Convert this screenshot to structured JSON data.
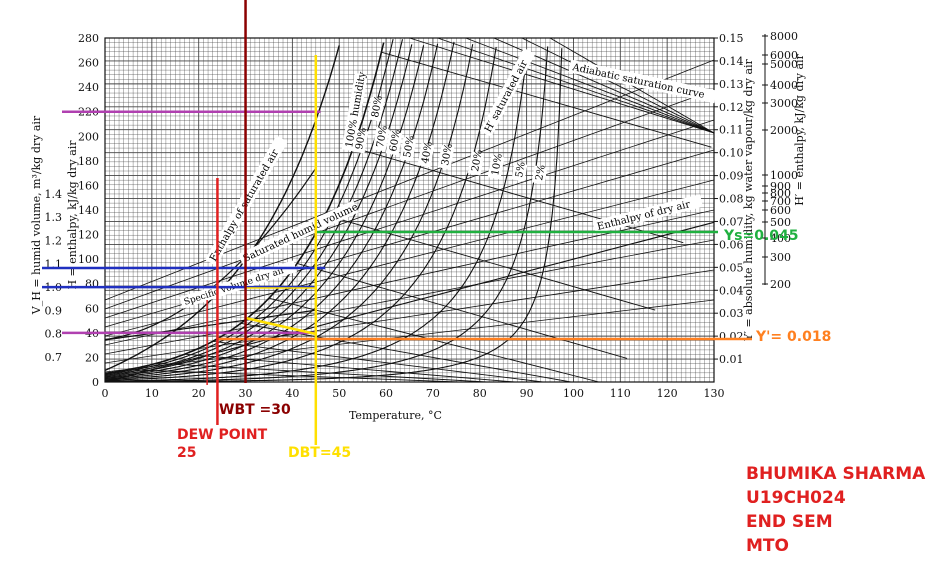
{
  "chart_data": {
    "type": "line",
    "title": "",
    "xlabel": "Temperature, °C",
    "x_range": [
      0,
      130
    ],
    "x_ticks": [
      0,
      10,
      20,
      30,
      40,
      50,
      60,
      70,
      80,
      90,
      100,
      110,
      120,
      130
    ],
    "axes": {
      "humid_volume": {
        "label": "V_H = humid volume, m³/kg dry air",
        "range": [
          0.7,
          1.4
        ],
        "ticks": [
          "0.7",
          "0.8",
          "0.9",
          "1.0",
          "1.1",
          "1.2",
          "1.3",
          "1.4"
        ]
      },
      "enthalpy_left": {
        "label": "H = enthalpy, kJ/kg dry air",
        "range": [
          0,
          280
        ],
        "ticks": [
          "0",
          "20",
          "40",
          "60",
          "80",
          "100",
          "120",
          "140",
          "160",
          "180",
          "200",
          "220",
          "240",
          "260",
          "280"
        ]
      },
      "absolute_humidity": {
        "label": "Y′ = absolute humidity, kg water vapour/kg dry air",
        "range": [
          0,
          0.15
        ],
        "ticks": [
          "0.01",
          "0.02",
          "0.03",
          "0.04",
          "0.05",
          "0.06",
          "0.07",
          "0.08",
          "0.09",
          "0.10",
          "0.11",
          "0.12",
          "0.13",
          "0.14",
          "0.15"
        ]
      },
      "enthalpy_right": {
        "label": "H′ = enthalpy, kJ/kg dry air",
        "ticks": [
          "200",
          "300",
          "400",
          "500",
          "600",
          "700",
          "800",
          "900",
          "1000",
          "2000",
          "3000",
          "4000",
          "5000",
          "6000",
          "8000"
        ]
      }
    },
    "curve_labels": {
      "rh": [
        "100% humidity",
        "90%",
        "80%",
        "70%",
        "60%",
        "50%",
        "40%",
        "30%",
        "20%",
        "10%",
        "5%",
        "2%"
      ],
      "adiabatic": "Adiabatic saturation curve",
      "h_sat": "H′ saturated air",
      "enthalpy_dry": "Enthalpy of dry air",
      "enthalpy_sat": "Enthalpy of saturated air",
      "vol_sat": "Saturated humid volume",
      "vol_spec": "Specific volume dry air"
    },
    "relative_humidity_curves": [
      100,
      90,
      80,
      70,
      60,
      50,
      40,
      30,
      20,
      10,
      5,
      2
    ],
    "annotations": [
      {
        "label": "WBT =30",
        "x": 30,
        "color": "#8b0000"
      },
      {
        "label": "DEW POINT",
        "value": "25",
        "x": 25,
        "color": "#e02020"
      },
      {
        "label": "DBT=45",
        "x": 45,
        "color": "#ffe000"
      },
      {
        "label": "Ys=0.045",
        "y": 0.045,
        "color": "#20b040"
      },
      {
        "label": "Y'= 0.018",
        "y": 0.018,
        "color": "#ff8020"
      }
    ],
    "grid": true
  },
  "colors": {
    "wbt": "#8b0000",
    "dew": "#e02020",
    "dbt": "#ffe000",
    "ys": "#20b040",
    "y": "#ff8020",
    "vh": "#2030c0",
    "h": "#b040b0"
  },
  "signature": {
    "name": "BHUMIKA SHARMA",
    "roll": "U19CH024",
    "exam": "END SEM",
    "code": "MTO"
  }
}
